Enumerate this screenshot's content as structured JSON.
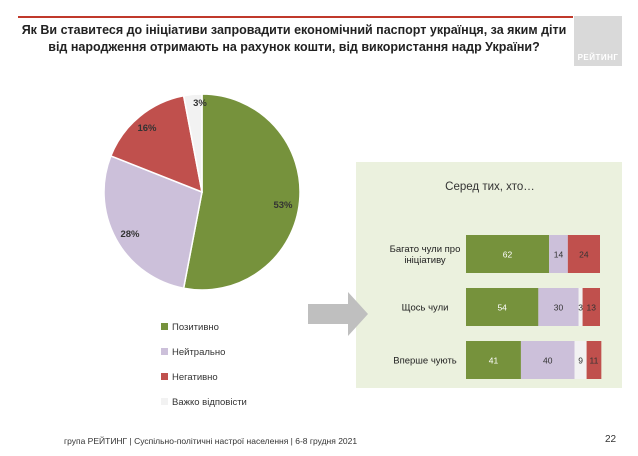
{
  "title": "Як Ви ставитеся до ініціативи запровадити економічний паспорт українця, за яким діти від народження отримають на рахунок кошти, від використання надр України?",
  "logo_text": "РЕЙТИНГ",
  "footer": "група РЕЙТИНГ | Суспільно-політичні настрої населення  | 6-8 грудня 2021",
  "page_number": "22",
  "chart_data": [
    {
      "type": "pie",
      "labels": [
        "Позитивно",
        "Нейтрально",
        "Негативно",
        "Важко відповісти"
      ],
      "values": [
        53,
        28,
        16,
        3
      ],
      "value_labels": [
        "53%",
        "28%",
        "16%",
        "3%"
      ],
      "colors": [
        "#76923c",
        "#ccc0da",
        "#c0504d",
        "#f2f2f2"
      ],
      "legend_position": "bottom"
    },
    {
      "type": "bar",
      "orientation": "horizontal",
      "stacked": true,
      "title": "Серед тих, хто…",
      "categories": [
        "Багато чули про ініціативу",
        "Щось чули",
        "Вперше чують"
      ],
      "series": [
        {
          "name": "Позитивно",
          "values": [
            62,
            54,
            41
          ],
          "color": "#76923c"
        },
        {
          "name": "Нейтрально",
          "values": [
            14,
            30,
            40
          ],
          "color": "#ccc0da"
        },
        {
          "name": "Важко відповісти",
          "values": [
            0,
            3,
            9
          ],
          "color": "#f2f2f2"
        },
        {
          "name": "Негативно",
          "values": [
            24,
            13,
            11
          ],
          "color": "#c0504d"
        }
      ],
      "xlim": [
        0,
        100
      ]
    }
  ]
}
